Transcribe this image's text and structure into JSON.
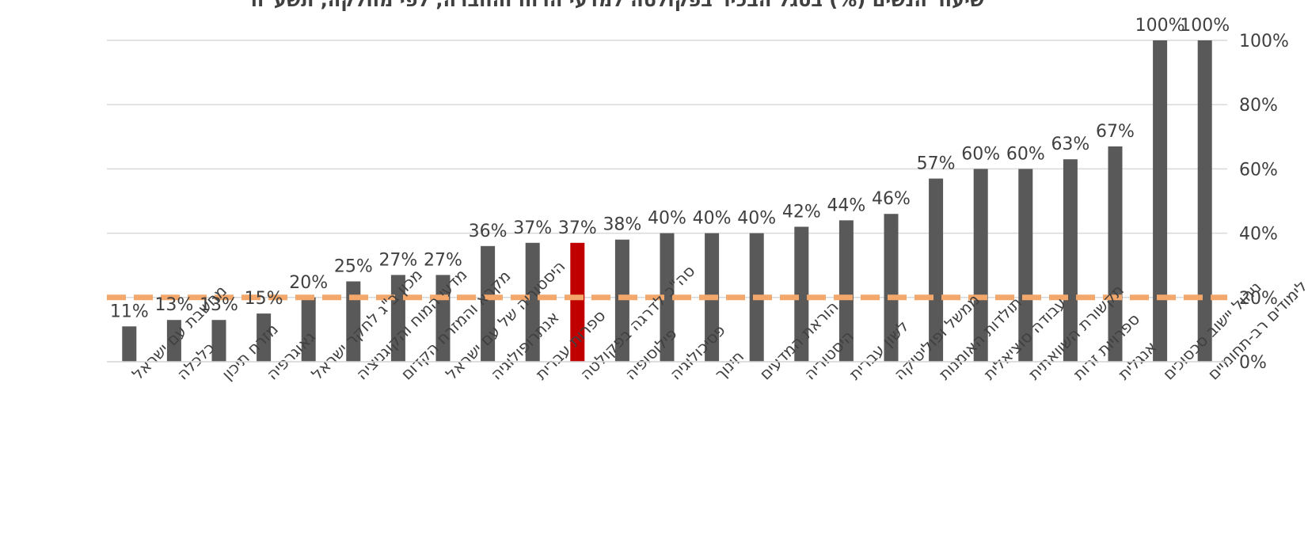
{
  "chart_data": {
    "type": "bar",
    "title": "שיעור הנשים (%) בסגל הבכיר בפקולטה למדעי הרוח והחברה, לפי מחלקה, תשע\"ח",
    "categories": [
      "מחשבת עם ישראל",
      "כלכלה",
      "מזרח תיכון",
      "גאוגרפיה",
      "מכון ב\"ג לחקר ישראל",
      "מדעי המוח והקוגניציה",
      "מקרא והמזרח הקדום",
      "היסטוריה של עם ישראל",
      "אנתרופולוגיה",
      "ספרות עברית",
      "סה\"כ לדרגה בפקולטה",
      "פילוסופיה",
      "פסיכולוגיה",
      "חינוך",
      "הוראת המדעים",
      "היסטוריה",
      "לשון עברית",
      "ממשל ופוליטיקה",
      "תולדות האומנות",
      "עבודה סוציאלית",
      "תקשורת השוואתית",
      "ספרויות זרות",
      "אנגלית",
      "ניהול יישוב סכסוכים",
      "לימודים רב-תחומיים"
    ],
    "values": [
      11,
      13,
      13,
      15,
      20,
      25,
      27,
      27,
      36,
      37,
      37,
      38,
      40,
      40,
      40,
      42,
      44,
      46,
      57,
      60,
      60,
      63,
      67,
      100,
      100
    ],
    "value_labels": [
      "11%",
      "13%",
      "13%",
      "15%",
      "20%",
      "25%",
      "27%",
      "27%",
      "36%",
      "37%",
      "37%",
      "38%",
      "40%",
      "40%",
      "40%",
      "42%",
      "44%",
      "46%",
      "57%",
      "60%",
      "60%",
      "63%",
      "67%",
      "100%",
      "100%"
    ],
    "highlight_index": 10,
    "reference_line": 20,
    "ylim": [
      0,
      100
    ],
    "yticks": [
      0,
      20,
      40,
      60,
      80,
      100
    ],
    "ytick_labels": [
      "0%",
      "20%",
      "40%",
      "60%",
      "80%",
      "100%"
    ],
    "y_axis_side": "right",
    "grid": true,
    "colors": {
      "bar": "#595959",
      "highlight": "#C00000",
      "reference": "#F4A76B",
      "grid": "#D9D9D9",
      "text": "#404040"
    }
  }
}
